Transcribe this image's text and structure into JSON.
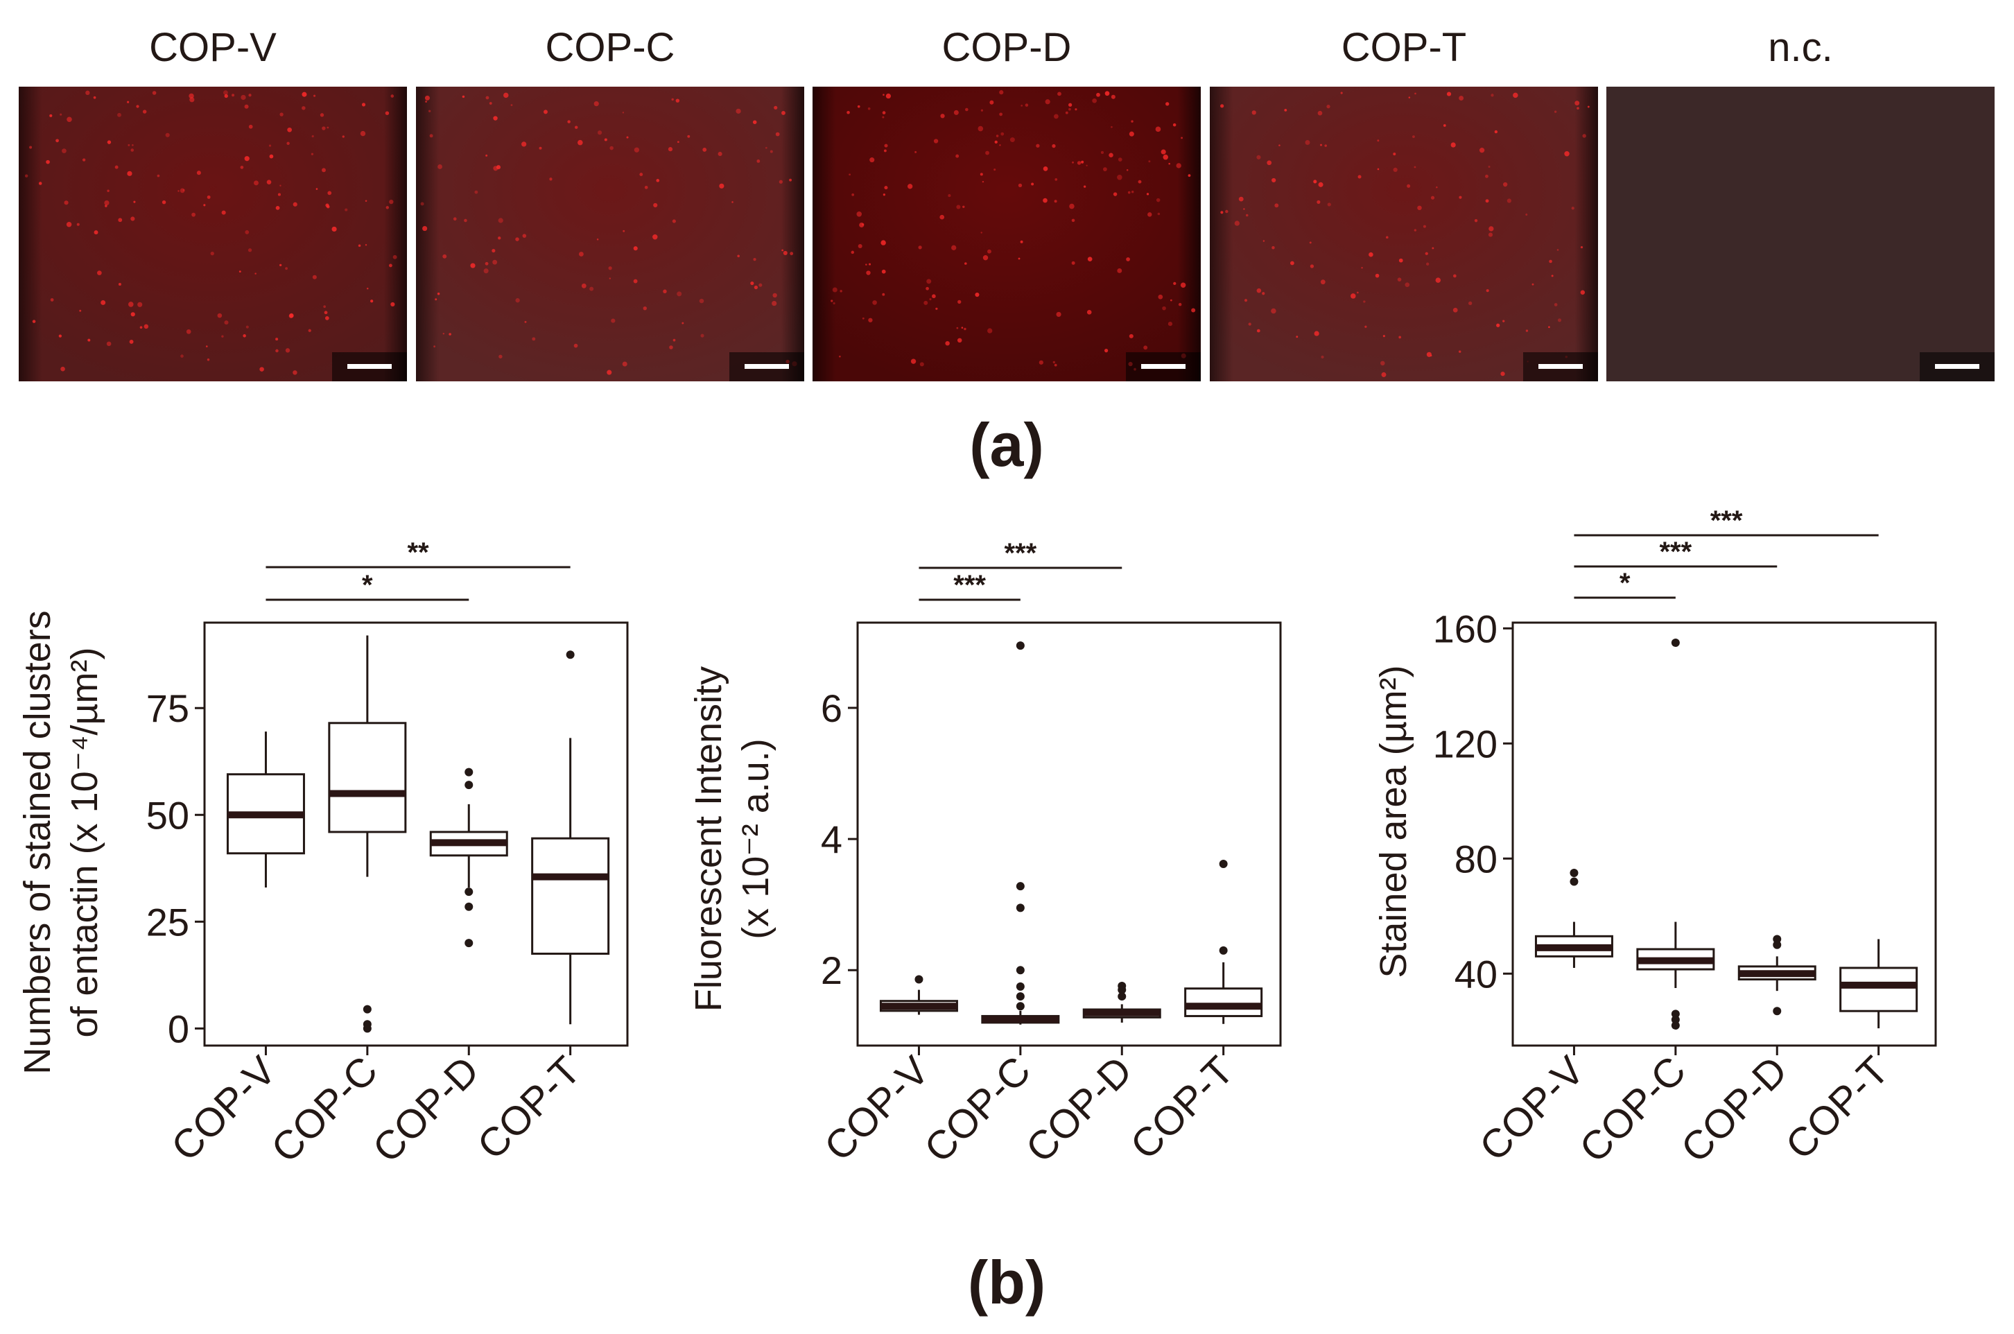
{
  "panel_a": {
    "label": "(a)",
    "images": [
      {
        "label": "COP-V",
        "brightness": 0.9,
        "dots": 140
      },
      {
        "label": "COP-C",
        "brightness": 0.85,
        "dots": 110
      },
      {
        "label": "COP-D",
        "brightness": 1.0,
        "dots": 160
      },
      {
        "label": "COP-T",
        "brightness": 0.85,
        "dots": 120
      },
      {
        "label": "n.c.",
        "brightness": 0.18,
        "dots": 0
      }
    ]
  },
  "panel_b": {
    "label": "(b)"
  },
  "colors": {
    "ink": "#231815",
    "median": "#2b1514",
    "micrograph_bg": "#4a0707",
    "micrograph_edge": "#180202",
    "dot": "#ff2a2a",
    "scalebar": "#ffffff"
  },
  "chart_data": [
    {
      "type": "box",
      "title": "",
      "categories": [
        "COP-V",
        "COP-C",
        "COP-D",
        "COP-T"
      ],
      "ylabel_line1": "Numbers of stained clusters",
      "ylabel_line2": "of entactin (x 10⁻⁴/µm²)",
      "ylim": [
        -4,
        95
      ],
      "yticks": [
        0,
        25,
        50,
        75
      ],
      "series": [
        {
          "name": "COP-V",
          "whisker_low": 33,
          "q1": 41,
          "median": 50,
          "q3": 59.5,
          "whisker_high": 69.5,
          "outliers": []
        },
        {
          "name": "COP-C",
          "whisker_low": 35.5,
          "q1": 46,
          "median": 55,
          "q3": 71.5,
          "whisker_high": 92,
          "outliers": [
            0,
            1,
            4.5
          ]
        },
        {
          "name": "COP-D",
          "whisker_low": 33,
          "q1": 40.5,
          "median": 43.5,
          "q3": 46,
          "whisker_high": 52.5,
          "outliers": [
            20,
            28.5,
            32,
            57,
            60
          ]
        },
        {
          "name": "COP-T",
          "whisker_low": 1,
          "q1": 17.5,
          "median": 35.5,
          "q3": 44.5,
          "whisker_high": 68,
          "outliers": [
            87.5
          ]
        }
      ],
      "significance": [
        {
          "from": "COP-V",
          "to": "COP-D",
          "label": "*"
        },
        {
          "from": "COP-V",
          "to": "COP-T",
          "label": "**"
        }
      ]
    },
    {
      "type": "box",
      "title": "",
      "categories": [
        "COP-V",
        "COP-C",
        "COP-D",
        "COP-T"
      ],
      "ylabel_line1": "Fluorescent Intensity",
      "ylabel_line2": "(x 10⁻² a.u.)",
      "ylim": [
        0.85,
        7.3
      ],
      "yticks": [
        2,
        4,
        6
      ],
      "series": [
        {
          "name": "COP-V",
          "whisker_low": 1.32,
          "q1": 1.38,
          "median": 1.45,
          "q3": 1.53,
          "whisker_high": 1.7,
          "outliers": [
            1.86
          ]
        },
        {
          "name": "COP-C",
          "whisker_low": 1.17,
          "q1": 1.2,
          "median": 1.25,
          "q3": 1.3,
          "whisker_high": 1.38,
          "outliers": [
            1.45,
            1.6,
            1.75,
            2.0,
            2.95,
            3.28,
            6.95
          ]
        },
        {
          "name": "COP-D",
          "whisker_low": 1.2,
          "q1": 1.28,
          "median": 1.35,
          "q3": 1.4,
          "whisker_high": 1.48,
          "outliers": [
            1.6,
            1.7,
            1.76
          ]
        },
        {
          "name": "COP-T",
          "whisker_low": 1.18,
          "q1": 1.3,
          "median": 1.45,
          "q3": 1.72,
          "whisker_high": 2.12,
          "outliers": [
            2.3,
            3.62
          ]
        }
      ],
      "significance": [
        {
          "from": "COP-V",
          "to": "COP-C",
          "label": "***"
        },
        {
          "from": "COP-V",
          "to": "COP-D",
          "label": "***"
        }
      ]
    },
    {
      "type": "box",
      "title": "",
      "categories": [
        "COP-V",
        "COP-C",
        "COP-D",
        "COP-T"
      ],
      "ylabel_line1": "Stained area (µm²)",
      "ylabel_line2": "",
      "ylim": [
        15,
        162
      ],
      "yticks": [
        40,
        80,
        120,
        160
      ],
      "series": [
        {
          "name": "COP-V",
          "whisker_low": 42,
          "q1": 46,
          "median": 49,
          "q3": 53,
          "whisker_high": 58,
          "outliers": [
            72,
            75
          ]
        },
        {
          "name": "COP-C",
          "whisker_low": 35,
          "q1": 41.5,
          "median": 44.5,
          "q3": 48.5,
          "whisker_high": 58,
          "outliers": [
            22,
            24,
            26,
            155
          ]
        },
        {
          "name": "COP-D",
          "whisker_low": 34,
          "q1": 38,
          "median": 40,
          "q3": 42.5,
          "whisker_high": 46,
          "outliers": [
            27,
            50,
            52
          ]
        },
        {
          "name": "COP-T",
          "whisker_low": 21,
          "q1": 27,
          "median": 36,
          "q3": 42,
          "whisker_high": 52,
          "outliers": []
        }
      ],
      "significance": [
        {
          "from": "COP-V",
          "to": "COP-C",
          "label": "*"
        },
        {
          "from": "COP-V",
          "to": "COP-D",
          "label": "***"
        },
        {
          "from": "COP-V",
          "to": "COP-T",
          "label": "***"
        }
      ]
    }
  ]
}
